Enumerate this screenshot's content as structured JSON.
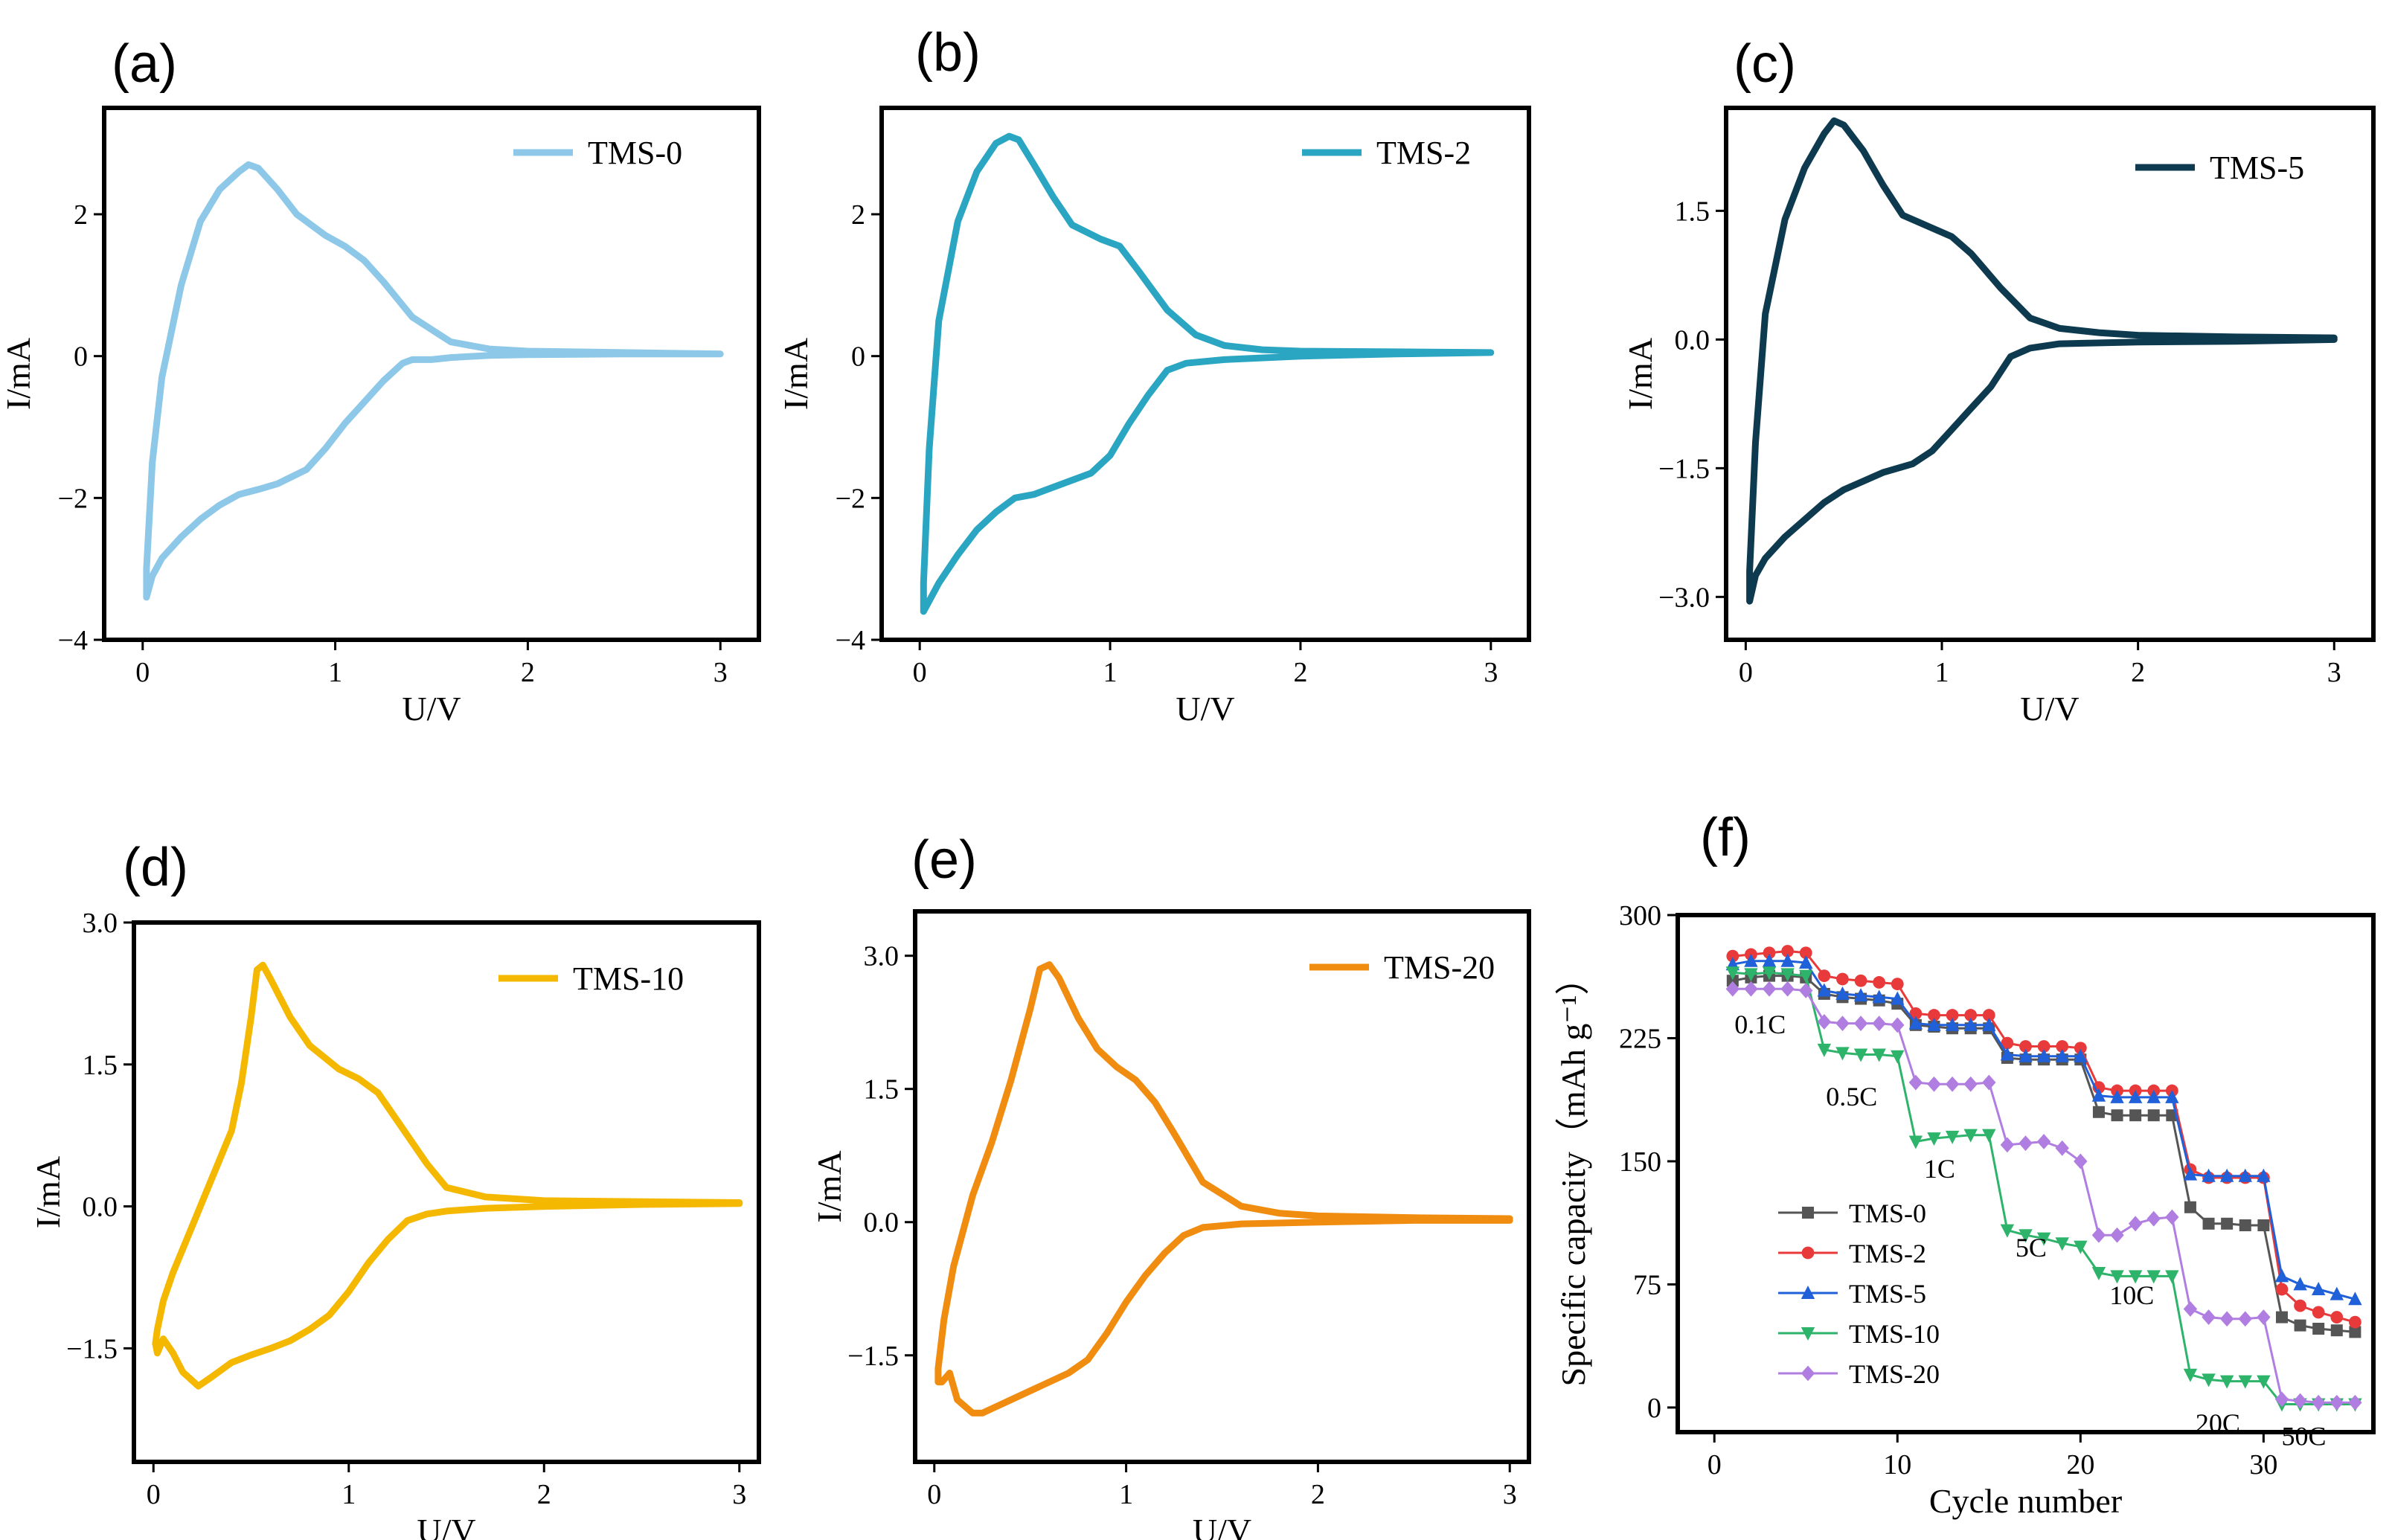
{
  "figure": {
    "title": ""
  },
  "chart_data": [
    {
      "id": "a",
      "panel_label": "(a)",
      "type": "line",
      "xlabel": "U/V",
      "ylabel": "I/mA",
      "xlim": [
        -0.2,
        3.2
      ],
      "ylim": [
        -4.0,
        3.5
      ],
      "xticks": [
        0,
        1,
        2,
        3
      ],
      "xtick_labels": [
        "0",
        "1",
        "2",
        "3"
      ],
      "yticks": [
        -4,
        -2,
        0,
        2
      ],
      "ytick_labels": [
        "−4",
        "−2",
        "0",
        "2"
      ],
      "series": [
        {
          "name": "TMS-0",
          "color": "#8ec8e8",
          "x": [
            3.0,
            2.5,
            2.0,
            1.8,
            1.6,
            1.5,
            1.4,
            1.35,
            1.25,
            1.15,
            1.05,
            0.95,
            0.85,
            0.7,
            0.6,
            0.5,
            0.4,
            0.3,
            0.2,
            0.1,
            0.05,
            0.02,
            0.02,
            0.05,
            0.1,
            0.2,
            0.3,
            0.4,
            0.5,
            0.55,
            0.6,
            0.7,
            0.8,
            0.95,
            1.05,
            1.15,
            1.25,
            1.4,
            1.6,
            1.8,
            2.0,
            2.5,
            3.0
          ],
          "y": [
            0.03,
            0.03,
            0.02,
            0.01,
            -0.02,
            -0.05,
            -0.05,
            -0.1,
            -0.35,
            -0.65,
            -0.95,
            -1.3,
            -1.6,
            -1.8,
            -1.88,
            -1.95,
            -2.1,
            -2.3,
            -2.55,
            -2.85,
            -3.1,
            -3.4,
            -3.0,
            -1.5,
            -0.3,
            1.0,
            1.9,
            2.35,
            2.6,
            2.7,
            2.65,
            2.35,
            2.0,
            1.7,
            1.55,
            1.35,
            1.05,
            0.55,
            0.2,
            0.1,
            0.07,
            0.05,
            0.03
          ]
        }
      ]
    },
    {
      "id": "b",
      "panel_label": "(b)",
      "type": "line",
      "xlabel": "U/V",
      "ylabel": "I/mA",
      "xlim": [
        -0.2,
        3.2
      ],
      "ylim": [
        -4.0,
        3.5
      ],
      "xticks": [
        0,
        1,
        2,
        3
      ],
      "xtick_labels": [
        "0",
        "1",
        "2",
        "3"
      ],
      "yticks": [
        -4,
        -2,
        0,
        2
      ],
      "ytick_labels": [
        "−4",
        "−2",
        "0",
        "2"
      ],
      "series": [
        {
          "name": "TMS-2",
          "color": "#2aa5c2",
          "x": [
            3.0,
            2.5,
            2.0,
            1.6,
            1.4,
            1.3,
            1.2,
            1.1,
            1.0,
            0.9,
            0.8,
            0.7,
            0.6,
            0.5,
            0.4,
            0.3,
            0.2,
            0.1,
            0.05,
            0.02,
            0.02,
            0.05,
            0.1,
            0.2,
            0.3,
            0.4,
            0.47,
            0.52,
            0.6,
            0.7,
            0.8,
            0.95,
            1.05,
            1.15,
            1.3,
            1.45,
            1.6,
            1.8,
            2.0,
            2.5,
            3.0
          ],
          "y": [
            0.05,
            0.03,
            0.0,
            -0.05,
            -0.1,
            -0.2,
            -0.55,
            -0.95,
            -1.4,
            -1.65,
            -1.75,
            -1.85,
            -1.95,
            -2.0,
            -2.2,
            -2.45,
            -2.8,
            -3.2,
            -3.45,
            -3.6,
            -3.2,
            -1.3,
            0.5,
            1.9,
            2.6,
            3.0,
            3.1,
            3.05,
            2.7,
            2.25,
            1.85,
            1.65,
            1.55,
            1.2,
            0.65,
            0.3,
            0.15,
            0.09,
            0.07,
            0.06,
            0.05
          ]
        }
      ]
    },
    {
      "id": "c",
      "panel_label": "(c)",
      "type": "line",
      "xlabel": "U/V",
      "ylabel": "I/mA",
      "xlim": [
        -0.1,
        3.2
      ],
      "ylim": [
        -3.5,
        2.7
      ],
      "xticks": [
        0,
        1,
        2,
        3
      ],
      "xtick_labels": [
        "0",
        "1",
        "2",
        "3"
      ],
      "yticks": [
        -3.0,
        -1.5,
        0.0,
        1.5
      ],
      "ytick_labels": [
        "−3.0",
        "−1.5",
        "0.0",
        "1.5"
      ],
      "series": [
        {
          "name": "TMS-5",
          "color": "#0d3a4f",
          "x": [
            3.0,
            2.5,
            2.0,
            1.6,
            1.45,
            1.35,
            1.25,
            1.15,
            1.05,
            0.95,
            0.85,
            0.7,
            0.6,
            0.5,
            0.4,
            0.3,
            0.2,
            0.1,
            0.05,
            0.02,
            0.02,
            0.05,
            0.1,
            0.2,
            0.3,
            0.4,
            0.45,
            0.5,
            0.6,
            0.7,
            0.8,
            0.95,
            1.05,
            1.15,
            1.3,
            1.45,
            1.6,
            1.8,
            2.0,
            2.5,
            3.0
          ],
          "y": [
            0.0,
            -0.02,
            -0.03,
            -0.05,
            -0.1,
            -0.2,
            -0.55,
            -0.8,
            -1.05,
            -1.3,
            -1.45,
            -1.55,
            -1.65,
            -1.75,
            -1.9,
            -2.1,
            -2.3,
            -2.55,
            -2.75,
            -3.05,
            -2.7,
            -1.2,
            0.3,
            1.4,
            2.0,
            2.4,
            2.55,
            2.5,
            2.2,
            1.8,
            1.45,
            1.3,
            1.2,
            1.0,
            0.6,
            0.25,
            0.13,
            0.08,
            0.05,
            0.03,
            0.02
          ]
        }
      ]
    },
    {
      "id": "d",
      "panel_label": "(d)",
      "type": "line",
      "xlabel": "U/V",
      "ylabel": "I/mA",
      "xlim": [
        -0.1,
        3.1
      ],
      "ylim": [
        -2.7,
        3.0
      ],
      "xticks": [
        0,
        1,
        2,
        3
      ],
      "xtick_labels": [
        "0",
        "1",
        "2",
        "3"
      ],
      "yticks": [
        -1.5,
        0.0,
        1.5,
        3.0
      ],
      "ytick_labels": [
        "−1.5",
        "0.0",
        "1.5",
        "3.0"
      ],
      "series": [
        {
          "name": "TMS-10",
          "color": "#f5b800",
          "x": [
            3.0,
            2.5,
            2.0,
            1.7,
            1.5,
            1.4,
            1.3,
            1.2,
            1.1,
            1.0,
            0.9,
            0.8,
            0.7,
            0.6,
            0.5,
            0.4,
            0.3,
            0.23,
            0.15,
            0.1,
            0.05,
            0.02,
            0.01,
            0.02,
            0.05,
            0.1,
            0.2,
            0.3,
            0.4,
            0.45,
            0.5,
            0.53,
            0.56,
            0.6,
            0.7,
            0.8,
            0.95,
            1.05,
            1.15,
            1.25,
            1.4,
            1.5,
            1.7,
            2.0,
            2.5,
            3.0
          ],
          "y": [
            0.03,
            0.02,
            0.0,
            -0.02,
            -0.05,
            -0.08,
            -0.15,
            -0.35,
            -0.6,
            -0.9,
            -1.15,
            -1.3,
            -1.42,
            -1.5,
            -1.57,
            -1.65,
            -1.8,
            -1.9,
            -1.75,
            -1.55,
            -1.4,
            -1.55,
            -1.45,
            -1.3,
            -1.0,
            -0.7,
            -0.2,
            0.3,
            0.8,
            1.3,
            2.0,
            2.5,
            2.55,
            2.4,
            2.0,
            1.7,
            1.45,
            1.35,
            1.2,
            0.9,
            0.45,
            0.2,
            0.1,
            0.06,
            0.05,
            0.04
          ]
        }
      ]
    },
    {
      "id": "e",
      "panel_label": "(e)",
      "type": "line",
      "xlabel": "U/V",
      "ylabel": "I/mA",
      "xlim": [
        -0.1,
        3.1
      ],
      "ylim": [
        -2.7,
        3.5
      ],
      "xticks": [
        0,
        1,
        2,
        3
      ],
      "xtick_labels": [
        "0",
        "1",
        "2",
        "3"
      ],
      "yticks": [
        -1.5,
        0.0,
        1.5,
        3.0
      ],
      "ytick_labels": [
        "−1.5",
        "0.0",
        "1.5",
        "3.0"
      ],
      "series": [
        {
          "name": "TMS-20",
          "color": "#f08c10",
          "x": [
            3.0,
            2.5,
            2.0,
            1.6,
            1.4,
            1.3,
            1.2,
            1.1,
            1.0,
            0.9,
            0.8,
            0.7,
            0.6,
            0.5,
            0.4,
            0.3,
            0.25,
            0.2,
            0.12,
            0.08,
            0.04,
            0.02,
            0.02,
            0.05,
            0.1,
            0.2,
            0.3,
            0.4,
            0.5,
            0.55,
            0.6,
            0.65,
            0.75,
            0.85,
            0.95,
            1.05,
            1.15,
            1.25,
            1.4,
            1.6,
            1.8,
            2.0,
            2.5,
            3.0
          ],
          "y": [
            0.02,
            0.02,
            0.0,
            -0.02,
            -0.06,
            -0.15,
            -0.35,
            -0.6,
            -0.9,
            -1.25,
            -1.55,
            -1.7,
            -1.8,
            -1.9,
            -2.0,
            -2.1,
            -2.15,
            -2.15,
            -2.0,
            -1.7,
            -1.8,
            -1.8,
            -1.65,
            -1.1,
            -0.5,
            0.3,
            0.9,
            1.6,
            2.4,
            2.85,
            2.9,
            2.75,
            2.3,
            1.95,
            1.75,
            1.6,
            1.35,
            1.0,
            0.45,
            0.18,
            0.1,
            0.07,
            0.05,
            0.04
          ]
        }
      ]
    },
    {
      "id": "f",
      "panel_label": "(f)",
      "type": "line-scatter",
      "xlabel": "Cycle number",
      "ylabel": "Specific capacity（mAh g⁻¹）",
      "xlim": [
        -2,
        36
      ],
      "ylim": [
        -15,
        300
      ],
      "xticks": [
        0,
        10,
        20,
        30
      ],
      "xtick_labels": [
        "0",
        "10",
        "20",
        "30"
      ],
      "yticks": [
        0,
        75,
        150,
        225,
        300
      ],
      "ytick_labels": [
        "0",
        "75",
        "150",
        "225",
        "300"
      ],
      "x": [
        1,
        2,
        3,
        4,
        5,
        6,
        7,
        8,
        9,
        10,
        11,
        12,
        13,
        14,
        15,
        16,
        17,
        18,
        19,
        20,
        21,
        22,
        23,
        24,
        25,
        26,
        27,
        28,
        29,
        30,
        31,
        32,
        33,
        34,
        35
      ],
      "series": [
        {
          "name": "TMS-0",
          "color": "#555555",
          "marker": "square",
          "values": [
            260,
            262,
            263,
            263,
            262,
            252,
            250,
            249,
            248,
            246,
            233,
            232,
            231,
            231,
            231,
            213,
            212,
            212,
            212,
            212,
            180,
            178,
            178,
            178,
            178,
            122,
            112,
            112,
            111,
            111,
            55,
            50,
            48,
            47,
            46
          ]
        },
        {
          "name": "TMS-2",
          "color": "#e83a3a",
          "marker": "circle",
          "values": [
            275,
            276,
            277,
            278,
            277,
            263,
            261,
            260,
            259,
            258,
            240,
            239,
            239,
            239,
            239,
            222,
            220,
            220,
            220,
            219,
            195,
            193,
            193,
            193,
            193,
            145,
            140,
            140,
            140,
            140,
            72,
            62,
            58,
            55,
            52
          ]
        },
        {
          "name": "TMS-5",
          "color": "#2060d8",
          "marker": "triangle-up",
          "values": [
            270,
            272,
            272,
            272,
            271,
            254,
            252,
            251,
            250,
            249,
            234,
            233,
            233,
            233,
            233,
            215,
            214,
            214,
            214,
            214,
            190,
            189,
            189,
            189,
            189,
            142,
            141,
            141,
            141,
            141,
            80,
            75,
            72,
            69,
            66
          ]
        },
        {
          "name": "TMS-10",
          "color": "#2db36a",
          "marker": "triangle-down",
          "values": [
            265,
            264,
            265,
            264,
            263,
            218,
            216,
            215,
            215,
            214,
            162,
            164,
            165,
            166,
            166,
            108,
            105,
            103,
            100,
            98,
            82,
            80,
            80,
            80,
            80,
            20,
            17,
            16,
            16,
            16,
            2,
            2,
            2,
            2,
            2
          ]
        },
        {
          "name": "TMS-20",
          "color": "#b07de0",
          "marker": "diamond",
          "values": [
            255,
            255,
            255,
            255,
            254,
            235,
            234,
            234,
            234,
            233,
            198,
            197,
            197,
            197,
            198,
            160,
            161,
            162,
            158,
            150,
            105,
            105,
            112,
            115,
            116,
            60,
            55,
            54,
            54,
            55,
            5,
            4,
            3,
            3,
            3
          ]
        }
      ],
      "rate_labels": [
        {
          "text": "0.1C",
          "x": 2.5,
          "y": 228
        },
        {
          "text": "0.5C",
          "x": 7.5,
          "y": 184
        },
        {
          "text": "1C",
          "x": 12.3,
          "y": 140
        },
        {
          "text": "5C",
          "x": 17.3,
          "y": 92
        },
        {
          "text": "10C",
          "x": 22.8,
          "y": 63
        },
        {
          "text": "20C",
          "x": 27.5,
          "y": -15
        },
        {
          "text": "50C",
          "x": 32.2,
          "y": -23
        }
      ]
    }
  ]
}
